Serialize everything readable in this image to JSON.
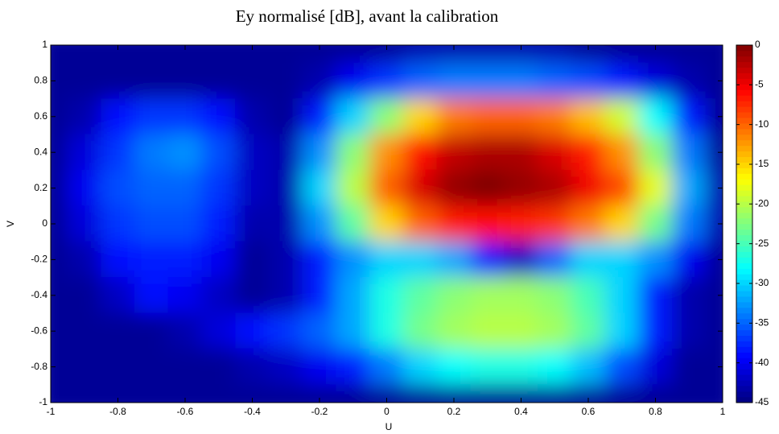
{
  "chart_data": {
    "type": "heatmap",
    "title": "Ey normalisé [dB], avant la calibration",
    "xlabel": "U",
    "ylabel": "V",
    "colormap": "jet",
    "x": [
      -1,
      -0.9,
      -0.8,
      -0.7,
      -0.6,
      -0.5,
      -0.4,
      -0.3,
      -0.2,
      -0.1,
      0,
      0.1,
      0.2,
      0.3,
      0.4,
      0.5,
      0.6,
      0.7,
      0.8,
      0.9,
      1
    ],
    "y": [
      1,
      0.8,
      0.6,
      0.4,
      0.2,
      0,
      -0.2,
      -0.4,
      -0.6,
      -0.8,
      -1
    ],
    "z": [
      [
        -44,
        -44,
        -44,
        -44,
        -44,
        -44,
        -44,
        -44,
        -44,
        -44,
        -44,
        -43,
        -43,
        -43,
        -43,
        -43,
        -44,
        -44,
        -44,
        -44,
        -44
      ],
      [
        -44,
        -44,
        -44,
        -44,
        -44,
        -44,
        -44,
        -44,
        -43,
        -40,
        -37,
        -35,
        -34,
        -34,
        -34,
        -35,
        -36,
        -38,
        -41,
        -43,
        -44
      ],
      [
        -44,
        -43,
        -39,
        -37,
        -37,
        -39,
        -43,
        -44,
        -38,
        -30,
        -22,
        -15,
        -11,
        -10,
        -10,
        -11,
        -14,
        -19,
        -28,
        -38,
        -44
      ],
      [
        -44,
        -41,
        -37,
        -34,
        -33,
        -36,
        -42,
        -43,
        -33,
        -22,
        -12,
        -6,
        -3,
        -2,
        -2,
        -4,
        -7,
        -12,
        -22,
        -34,
        -44
      ],
      [
        -44,
        -40,
        -36,
        -35,
        -35,
        -37,
        -42,
        -43,
        -30,
        -20,
        -10,
        -4,
        -1,
        0,
        -1,
        -2,
        -5,
        -9,
        -18,
        -32,
        -43
      ],
      [
        -44,
        -41,
        -37,
        -36,
        -36,
        -38,
        -43,
        -43,
        -33,
        -24,
        -15,
        -10,
        -7,
        -6,
        -7,
        -8,
        -11,
        -15,
        -23,
        -34,
        -43
      ],
      [
        -44,
        -43,
        -39,
        -38,
        -38,
        -40,
        -44,
        -43,
        -38,
        -33,
        -30,
        -30,
        -32,
        -38,
        -42,
        -35,
        -30,
        -30,
        -33,
        -40,
        -44
      ],
      [
        -44,
        -44,
        -42,
        -39,
        -40,
        -42,
        -44,
        -43,
        -38,
        -32,
        -27,
        -24,
        -22,
        -21,
        -21,
        -22,
        -25,
        -30,
        -38,
        -43,
        -44
      ],
      [
        -44,
        -44,
        -44,
        -44,
        -43,
        -41,
        -39,
        -37,
        -35,
        -32,
        -27,
        -23,
        -21,
        -20,
        -20,
        -21,
        -24,
        -30,
        -38,
        -43,
        -44
      ],
      [
        -44,
        -44,
        -44,
        -44,
        -44,
        -44,
        -43,
        -42,
        -40,
        -38,
        -34,
        -30,
        -28,
        -27,
        -27,
        -28,
        -31,
        -36,
        -41,
        -44,
        -44
      ],
      [
        -44,
        -44,
        -44,
        -44,
        -44,
        -44,
        -44,
        -44,
        -44,
        -44,
        -44,
        -44,
        -44,
        -44,
        -44,
        -44,
        -44,
        -44,
        -44,
        -44,
        -44
      ]
    ],
    "xlim": [
      -1,
      1
    ],
    "ylim": [
      -1,
      1
    ],
    "clim": [
      -45,
      0
    ],
    "xticks": [
      -1,
      -0.8,
      -0.6,
      -0.4,
      -0.2,
      0,
      0.2,
      0.4,
      0.6,
      0.8,
      1
    ],
    "yticks": [
      -1,
      -0.8,
      -0.6,
      -0.4,
      -0.2,
      0,
      0.2,
      0.4,
      0.6,
      0.8,
      1
    ],
    "cticks": [
      0,
      -5,
      -10,
      -15,
      -20,
      -25,
      -30,
      -35,
      -40,
      -45
    ]
  }
}
